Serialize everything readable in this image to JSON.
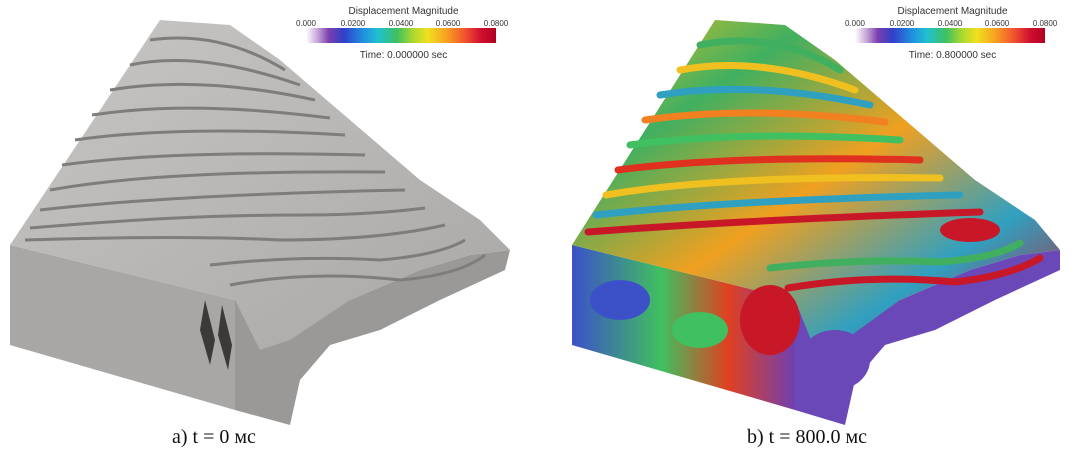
{
  "panels": [
    {
      "legend": {
        "title": "Displacement Magnitude",
        "ticks": [
          "0.000",
          "0.0200",
          "0.0400",
          "0.0600",
          "0.0800"
        ],
        "time": "Time: 0.000000 sec"
      },
      "caption": "a) t = 0 мс",
      "colors": {
        "surface": "#b8b6b4",
        "shadow": "#8e8c8a",
        "side": "#a7a5a3"
      }
    },
    {
      "legend": {
        "title": "Displacement Magnitude",
        "ticks": [
          "0.000",
          "0.0200",
          "0.0400",
          "0.0600",
          "0.0800"
        ],
        "time": "Time: 0.800000 sec"
      },
      "caption": "b) t = 800.0 мс",
      "colors": {
        "surface": "#3aa870",
        "low": "#5a3fb0",
        "mid": "#f0c020",
        "high": "#c81828"
      }
    }
  ]
}
